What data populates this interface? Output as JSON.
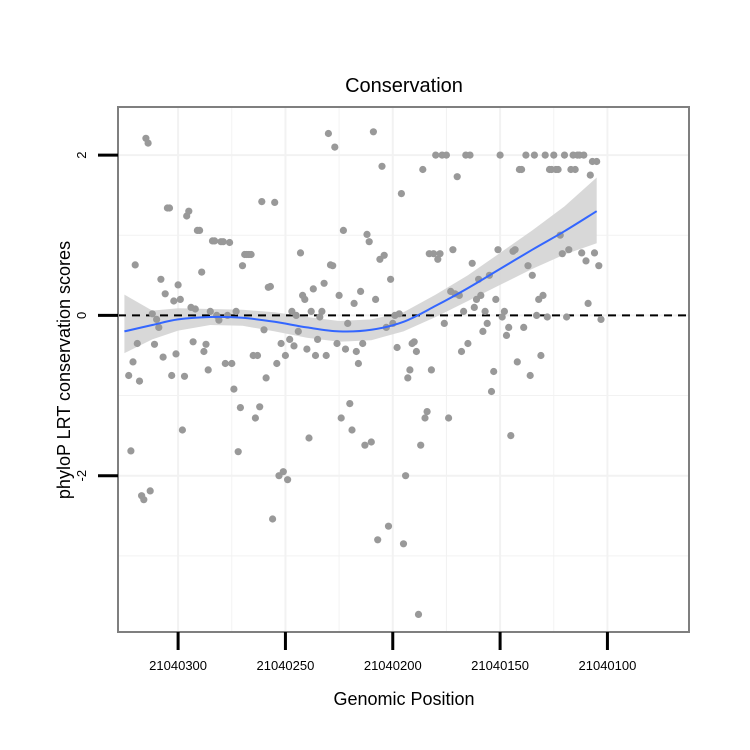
{
  "chart_data": {
    "type": "scatter",
    "title": "Conservation",
    "xlabel": "Genomic Position",
    "ylabel": "phyloP LRT conservation scores",
    "x_reversed": true,
    "xlim": [
      21040328,
      21040062
    ],
    "ylim": [
      -3.95,
      2.6
    ],
    "x_ticks": [
      21040300,
      21040250,
      21040200,
      21040150,
      21040100
    ],
    "x_tick_labels": [
      "21040300",
      "21040250",
      "21040200",
      "21040150",
      "21040100"
    ],
    "y_ticks": [
      -2,
      0,
      2
    ],
    "y_tick_labels": [
      "-2",
      "0",
      "2"
    ],
    "grid": true,
    "reference_line": {
      "y": 0,
      "style": "dashed",
      "color": "#000000"
    },
    "colors": {
      "points": "#999999",
      "smooth": "#3366ff",
      "ribbon": "#d4d4d4",
      "panel_border": "#7f7f7f"
    },
    "points": [
      [
        21040323,
        -0.75
      ],
      [
        21040322,
        -1.69
      ],
      [
        21040321,
        -0.58
      ],
      [
        21040320,
        0.63
      ],
      [
        21040319,
        -0.35
      ],
      [
        21040318,
        -0.82
      ],
      [
        21040317,
        -2.25
      ],
      [
        21040316,
        -2.3
      ],
      [
        21040315,
        2.21
      ],
      [
        21040314,
        2.15
      ],
      [
        21040313,
        -2.19
      ],
      [
        21040312,
        0.02
      ],
      [
        21040311,
        -0.36
      ],
      [
        21040310,
        -0.05
      ],
      [
        21040309,
        -0.15
      ],
      [
        21040308,
        0.45
      ],
      [
        21040307,
        -0.52
      ],
      [
        21040306,
        0.27
      ],
      [
        21040305,
        1.34
      ],
      [
        21040304,
        1.34
      ],
      [
        21040303,
        -0.75
      ],
      [
        21040302,
        0.18
      ],
      [
        21040301,
        -0.48
      ],
      [
        21040300,
        0.38
      ],
      [
        21040299,
        0.2
      ],
      [
        21040298,
        -1.43
      ],
      [
        21040297,
        -0.76
      ],
      [
        21040296,
        1.24
      ],
      [
        21040295,
        1.3
      ],
      [
        21040294,
        0.1
      ],
      [
        21040293,
        -0.33
      ],
      [
        21040292,
        0.08
      ],
      [
        21040291,
        1.06
      ],
      [
        21040290,
        1.06
      ],
      [
        21040289,
        0.54
      ],
      [
        21040288,
        -0.45
      ],
      [
        21040287,
        -0.36
      ],
      [
        21040286,
        -0.68
      ],
      [
        21040285,
        0.05
      ],
      [
        21040284,
        0.93
      ],
      [
        21040283,
        0.93
      ],
      [
        21040282,
        0.0
      ],
      [
        21040281,
        -0.06
      ],
      [
        21040280,
        0.92
      ],
      [
        21040279,
        0.92
      ],
      [
        21040278,
        -0.6
      ],
      [
        21040277,
        0.0
      ],
      [
        21040276,
        0.91
      ],
      [
        21040275,
        -0.6
      ],
      [
        21040274,
        -0.92
      ],
      [
        21040273,
        0.05
      ],
      [
        21040272,
        -1.7
      ],
      [
        21040271,
        -1.15
      ],
      [
        21040270,
        0.62
      ],
      [
        21040269,
        0.76
      ],
      [
        21040268,
        0.76
      ],
      [
        21040267,
        0.76
      ],
      [
        21040266,
        0.76
      ],
      [
        21040265,
        -0.5
      ],
      [
        21040264,
        -1.28
      ],
      [
        21040263,
        -0.5
      ],
      [
        21040262,
        -1.14
      ],
      [
        21040261,
        1.42
      ],
      [
        21040260,
        -0.18
      ],
      [
        21040259,
        -0.78
      ],
      [
        21040258,
        0.35
      ],
      [
        21040257,
        0.36
      ],
      [
        21040256,
        -2.54
      ],
      [
        21040255,
        1.41
      ],
      [
        21040254,
        -0.6
      ],
      [
        21040253,
        -2.0
      ],
      [
        21040252,
        -0.35
      ],
      [
        21040251,
        -1.95
      ],
      [
        21040250,
        -0.5
      ],
      [
        21040249,
        -2.05
      ],
      [
        21040248,
        -0.3
      ],
      [
        21040247,
        0.05
      ],
      [
        21040246,
        -0.38
      ],
      [
        21040245,
        0.0
      ],
      [
        21040244,
        -0.2
      ],
      [
        21040243,
        0.78
      ],
      [
        21040242,
        0.25
      ],
      [
        21040241,
        0.2
      ],
      [
        21040240,
        -0.42
      ],
      [
        21040239,
        -1.53
      ],
      [
        21040238,
        0.05
      ],
      [
        21040237,
        0.33
      ],
      [
        21040236,
        -0.5
      ],
      [
        21040235,
        -0.3
      ],
      [
        21040234,
        -0.02
      ],
      [
        21040233,
        0.05
      ],
      [
        21040232,
        0.4
      ],
      [
        21040231,
        -0.5
      ],
      [
        21040230,
        2.27
      ],
      [
        21040229,
        0.63
      ],
      [
        21040228,
        0.62
      ],
      [
        21040227,
        2.1
      ],
      [
        21040226,
        -0.35
      ],
      [
        21040225,
        0.25
      ],
      [
        21040224,
        -1.28
      ],
      [
        21040223,
        1.06
      ],
      [
        21040222,
        -0.42
      ],
      [
        21040221,
        -0.1
      ],
      [
        21040220,
        -1.1
      ],
      [
        21040219,
        -1.43
      ],
      [
        21040218,
        0.15
      ],
      [
        21040217,
        -0.45
      ],
      [
        21040216,
        -0.6
      ],
      [
        21040215,
        0.3
      ],
      [
        21040214,
        -0.35
      ],
      [
        21040213,
        -1.62
      ],
      [
        21040212,
        1.01
      ],
      [
        21040211,
        0.92
      ],
      [
        21040210,
        -1.58
      ],
      [
        21040209,
        2.29
      ],
      [
        21040208,
        0.2
      ],
      [
        21040207,
        -2.8
      ],
      [
        21040206,
        0.7
      ],
      [
        21040205,
        1.86
      ],
      [
        21040204,
        0.75
      ],
      [
        21040203,
        -0.15
      ],
      [
        21040202,
        -2.63
      ],
      [
        21040201,
        0.45
      ],
      [
        21040200,
        -0.1
      ],
      [
        21040199,
        0.0
      ],
      [
        21040198,
        -0.4
      ],
      [
        21040197,
        0.02
      ],
      [
        21040196,
        1.52
      ],
      [
        21040195,
        -2.85
      ],
      [
        21040194,
        -2.0
      ],
      [
        21040193,
        -0.78
      ],
      [
        21040192,
        -0.68
      ],
      [
        21040191,
        -0.35
      ],
      [
        21040190,
        -0.33
      ],
      [
        21040189,
        -0.45
      ],
      [
        21040188,
        -3.73
      ],
      [
        21040187,
        -1.62
      ],
      [
        21040186,
        1.82
      ],
      [
        21040185,
        -1.28
      ],
      [
        21040184,
        -1.2
      ],
      [
        21040183,
        0.77
      ],
      [
        21040182,
        -0.68
      ],
      [
        21040181,
        0.77
      ],
      [
        21040180,
        2.0
      ],
      [
        21040179,
        0.7
      ],
      [
        21040178,
        0.77
      ],
      [
        21040177,
        2.0
      ],
      [
        21040176,
        -0.1
      ],
      [
        21040175,
        2.0
      ],
      [
        21040174,
        -1.28
      ],
      [
        21040173,
        0.3
      ],
      [
        21040172,
        0.82
      ],
      [
        21040171,
        0.27
      ],
      [
        21040170,
        1.73
      ],
      [
        21040169,
        0.25
      ],
      [
        21040168,
        -0.45
      ],
      [
        21040167,
        0.05
      ],
      [
        21040166,
        2.0
      ],
      [
        21040165,
        -0.35
      ],
      [
        21040164,
        2.0
      ],
      [
        21040163,
        0.65
      ],
      [
        21040162,
        0.1
      ],
      [
        21040161,
        0.2
      ],
      [
        21040160,
        0.45
      ],
      [
        21040159,
        0.25
      ],
      [
        21040158,
        -0.2
      ],
      [
        21040157,
        0.05
      ],
      [
        21040156,
        -0.1
      ],
      [
        21040155,
        0.5
      ],
      [
        21040154,
        -0.95
      ],
      [
        21040153,
        -0.7
      ],
      [
        21040152,
        0.2
      ],
      [
        21040151,
        0.82
      ],
      [
        21040150,
        2.0
      ],
      [
        21040149,
        -0.02
      ],
      [
        21040148,
        0.05
      ],
      [
        21040147,
        -0.25
      ],
      [
        21040146,
        -0.15
      ],
      [
        21040145,
        -1.5
      ],
      [
        21040144,
        0.8
      ],
      [
        21040143,
        0.82
      ],
      [
        21040142,
        -0.58
      ],
      [
        21040141,
        1.82
      ],
      [
        21040140,
        1.82
      ],
      [
        21040139,
        -0.15
      ],
      [
        21040138,
        2.0
      ],
      [
        21040137,
        0.62
      ],
      [
        21040136,
        -0.75
      ],
      [
        21040135,
        0.5
      ],
      [
        21040134,
        2.0
      ],
      [
        21040133,
        0.0
      ],
      [
        21040132,
        0.2
      ],
      [
        21040131,
        -0.5
      ],
      [
        21040130,
        0.25
      ],
      [
        21040129,
        2.0
      ],
      [
        21040128,
        -0.02
      ],
      [
        21040127,
        1.82
      ],
      [
        21040126,
        1.82
      ],
      [
        21040125,
        2.0
      ],
      [
        21040124,
        1.82
      ],
      [
        21040123,
        1.82
      ],
      [
        21040122,
        1.0
      ],
      [
        21040121,
        0.77
      ],
      [
        21040120,
        2.0
      ],
      [
        21040119,
        -0.02
      ],
      [
        21040118,
        0.82
      ],
      [
        21040117,
        1.82
      ],
      [
        21040116,
        2.0
      ],
      [
        21040115,
        1.82
      ],
      [
        21040114,
        2.0
      ],
      [
        21040113,
        2.0
      ],
      [
        21040112,
        0.78
      ],
      [
        21040111,
        2.0
      ],
      [
        21040110,
        0.68
      ],
      [
        21040109,
        0.15
      ],
      [
        21040108,
        1.75
      ],
      [
        21040107,
        1.92
      ],
      [
        21040106,
        0.78
      ],
      [
        21040105,
        1.92
      ],
      [
        21040104,
        0.62
      ],
      [
        21040103,
        -0.05
      ]
    ],
    "smooth": {
      "x": [
        21040325,
        21040312,
        21040300,
        21040285,
        21040270,
        21040255,
        21040240,
        21040225,
        21040210,
        21040195,
        21040180,
        21040165,
        21040150,
        21040135,
        21040120,
        21040105
      ],
      "y": [
        -0.2,
        -0.12,
        -0.05,
        -0.02,
        -0.03,
        -0.08,
        -0.15,
        -0.2,
        -0.18,
        -0.08,
        0.12,
        0.34,
        0.58,
        0.82,
        1.05,
        1.3
      ],
      "lower": [
        -0.47,
        -0.3,
        -0.19,
        -0.12,
        -0.13,
        -0.2,
        -0.28,
        -0.33,
        -0.31,
        -0.2,
        -0.02,
        0.18,
        0.38,
        0.58,
        0.76,
        0.9
      ],
      "upper": [
        0.26,
        0.06,
        0.09,
        0.08,
        0.07,
        0.04,
        -0.02,
        -0.07,
        -0.05,
        0.04,
        0.26,
        0.5,
        0.78,
        1.06,
        1.36,
        1.72
      ]
    }
  }
}
